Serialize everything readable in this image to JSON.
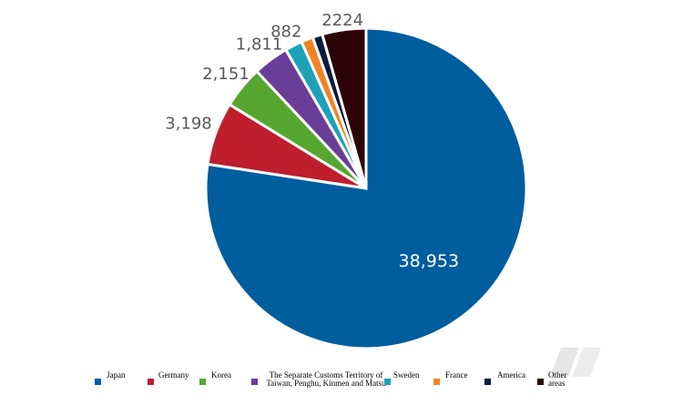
{
  "chart_data": {
    "type": "pie",
    "title": "",
    "categories": [
      "Japan",
      "Germany",
      "Korea",
      "The Separate Customs Territory of Taiwan, Penghu, Kinmen and Matsu",
      "Sweden",
      "France",
      "America",
      "Other areas"
    ],
    "values": [
      38953,
      3198,
      2151,
      1811,
      882,
      600,
      500,
      2224
    ],
    "value_labels": [
      "38,953",
      "3,198",
      "2,151",
      "1,811",
      "882",
      "",
      "",
      "2224"
    ],
    "colors": [
      "#005d9e",
      "#be1e2d",
      "#55a630",
      "#6a3d99",
      "#1ba2b7",
      "#f28223",
      "#0b1c3f",
      "#2c0508"
    ],
    "legend_position": "bottom"
  },
  "legend": {
    "items": [
      {
        "label": "Japan"
      },
      {
        "label": "Germany"
      },
      {
        "label": "Korea"
      },
      {
        "label": "The Separate Customs Territory of Taiwan, Penghu, Kinmen and Matsu"
      },
      {
        "label": "Sweden"
      },
      {
        "label": "France"
      },
      {
        "label": "America"
      },
      {
        "label": "Other areas"
      }
    ]
  }
}
